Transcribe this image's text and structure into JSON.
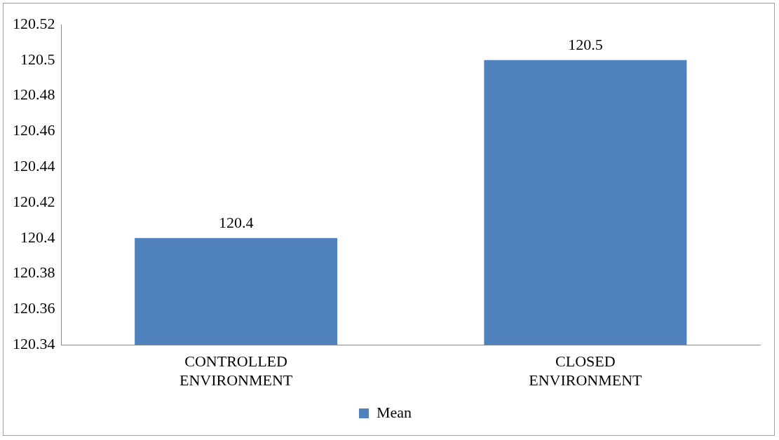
{
  "chart_data": {
    "type": "bar",
    "categories": [
      "CONTROLLED ENVIRONMENT",
      "CLOSED ENVIRONMENT"
    ],
    "series": [
      {
        "name": "Mean",
        "color": "#4f81bd",
        "values": [
          120.4,
          120.5
        ]
      }
    ],
    "ylim": [
      120.34,
      120.52
    ],
    "yticks": [
      120.34,
      120.36,
      120.38,
      120.4,
      120.42,
      120.44,
      120.46,
      120.48,
      120.5,
      120.52
    ],
    "data_labels": true,
    "grid": false,
    "legend": "bottom"
  }
}
